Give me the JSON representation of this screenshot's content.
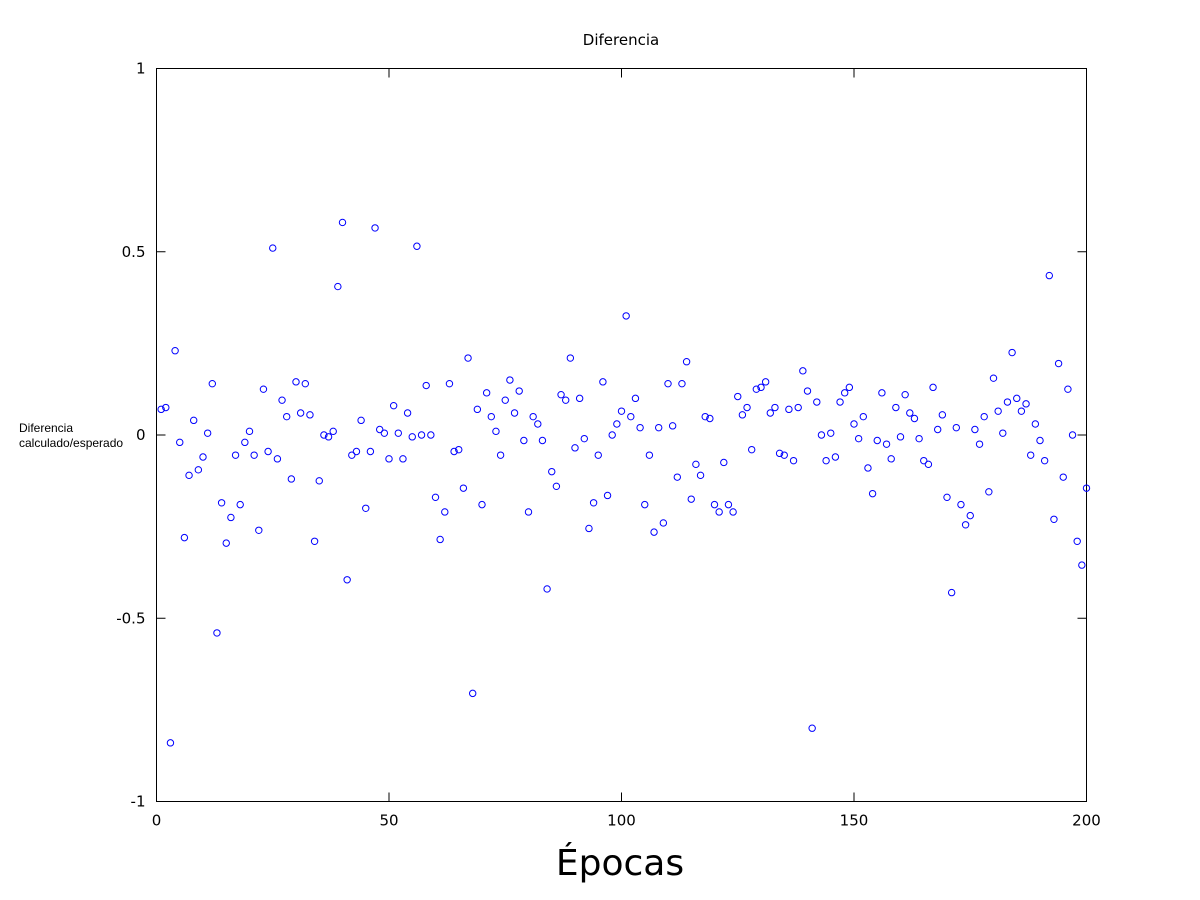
{
  "chart_data": {
    "type": "scatter",
    "title": "Diferencia",
    "xlabel": "Épocas",
    "ylabel_lines": [
      "Diferencia",
      "calculado/esperado"
    ],
    "xlim": [
      0,
      200
    ],
    "ylim": [
      -1,
      1
    ],
    "xticks": [
      0,
      50,
      100,
      150,
      200
    ],
    "yticks": [
      -1,
      -0.5,
      0,
      0.5,
      1
    ],
    "xtick_labels": [
      "0",
      "50",
      "100",
      "150",
      "200"
    ],
    "ytick_labels": [
      "-1",
      "-0.5",
      "0",
      "0.5",
      "1"
    ],
    "grid": false,
    "marker": "circle-open",
    "marker_color": "#0000ff",
    "series": [
      {
        "x": [
          1,
          2,
          3,
          4,
          5,
          6,
          7,
          8,
          9,
          10,
          11,
          12,
          13,
          14,
          15,
          16,
          17,
          18,
          19,
          20,
          21,
          22,
          23,
          24,
          25,
          26,
          27,
          28,
          29,
          30,
          31,
          32,
          33,
          34,
          35,
          36,
          37,
          38,
          39,
          40,
          41,
          42,
          43,
          44,
          45,
          46,
          47,
          48,
          49,
          50,
          51,
          52,
          53,
          54,
          55,
          56,
          57,
          58,
          59,
          60,
          61,
          62,
          63,
          64,
          65,
          66,
          67,
          68,
          69,
          70,
          71,
          72,
          73,
          74,
          75,
          76,
          77,
          78,
          79,
          80,
          81,
          82,
          83,
          84,
          85,
          86,
          87,
          88,
          89,
          90,
          91,
          92,
          93,
          94,
          95,
          96,
          97,
          98,
          99,
          100,
          101,
          102,
          103,
          104,
          105,
          106,
          107,
          108,
          109,
          110,
          111,
          112,
          113,
          114,
          115,
          116,
          117,
          118,
          119,
          120,
          121,
          122,
          123,
          124,
          125,
          126,
          127,
          128,
          129,
          130,
          131,
          132,
          133,
          134,
          135,
          136,
          137,
          138,
          139,
          140,
          141,
          142,
          143,
          144,
          145,
          146,
          147,
          148,
          149,
          150,
          151,
          152,
          153,
          154,
          155,
          156,
          157,
          158,
          159,
          160,
          161,
          162,
          163,
          164,
          165,
          166,
          167,
          168,
          169,
          170,
          171,
          172,
          173,
          174,
          175,
          176,
          177,
          178,
          179,
          180,
          181,
          182,
          183,
          184,
          185,
          186,
          187,
          188,
          189,
          190,
          191,
          192,
          193,
          194,
          195,
          196,
          197,
          198,
          199,
          200
        ],
        "y": [
          0.07,
          0.075,
          -0.84,
          0.23,
          -0.02,
          -0.28,
          -0.11,
          0.04,
          -0.095,
          -0.06,
          0.005,
          0.14,
          -0.54,
          -0.185,
          -0.295,
          -0.225,
          -0.055,
          -0.19,
          -0.02,
          0.01,
          -0.055,
          -0.26,
          0.125,
          -0.045,
          0.51,
          -0.065,
          0.095,
          0.05,
          -0.12,
          0.145,
          0.06,
          0.14,
          0.055,
          -0.29,
          -0.125,
          0,
          -0.005,
          0.01,
          0.405,
          0.58,
          -0.395,
          -0.055,
          -0.045,
          0.04,
          -0.2,
          -0.045,
          0.565,
          0.015,
          0.005,
          -0.065,
          0.08,
          0.005,
          -0.065,
          0.06,
          -0.005,
          0.515,
          0,
          0.135,
          0,
          -0.17,
          -0.285,
          -0.21,
          0.14,
          -0.045,
          -0.04,
          -0.145,
          0.21,
          -0.705,
          0.07,
          -0.19,
          0.115,
          0.05,
          0.01,
          -0.055,
          0.095,
          0.15,
          0.06,
          0.12,
          -0.015,
          -0.21,
          0.05,
          0.03,
          -0.015,
          -0.42,
          -0.1,
          -0.14,
          0.11,
          0.095,
          0.21,
          -0.035,
          0.1,
          -0.01,
          -0.255,
          -0.185,
          -0.055,
          0.145,
          -0.165,
          0,
          0.03,
          0.065,
          0.325,
          0.05,
          0.1,
          0.02,
          -0.19,
          -0.055,
          -0.265,
          0.02,
          -0.24,
          0.14,
          0.025,
          -0.115,
          0.14,
          0.2,
          -0.175,
          -0.08,
          -0.11,
          0.05,
          0.045,
          -0.19,
          -0.21,
          -0.075,
          -0.19,
          -0.21,
          0.105,
          0.055,
          0.075,
          -0.04,
          0.125,
          0.13,
          0.145,
          0.06,
          0.075,
          -0.05,
          -0.055,
          0.07,
          -0.07,
          0.075,
          0.175,
          0.12,
          -0.8,
          0.09,
          0,
          -0.07,
          0.005,
          -0.06,
          0.09,
          0.115,
          0.13,
          0.03,
          -0.01,
          0.05,
          -0.09,
          -0.16,
          -0.015,
          0.115,
          -0.025,
          -0.065,
          0.075,
          -0.005,
          0.11,
          0.06,
          0.045,
          -0.01,
          -0.07,
          -0.08,
          0.13,
          0.015,
          0.055,
          -0.17,
          -0.43,
          0.02,
          -0.19,
          -0.245,
          -0.22,
          0.015,
          -0.025,
          0.05,
          -0.155,
          0.155,
          0.065,
          0.005,
          0.09,
          0.225,
          0.1,
          0.065,
          0.085,
          -0.055,
          0.03,
          -0.015,
          -0.07,
          0.435,
          -0.23,
          0.195,
          -0.115,
          0.125,
          0,
          -0.29,
          -0.355,
          -0.145
        ]
      }
    ]
  }
}
